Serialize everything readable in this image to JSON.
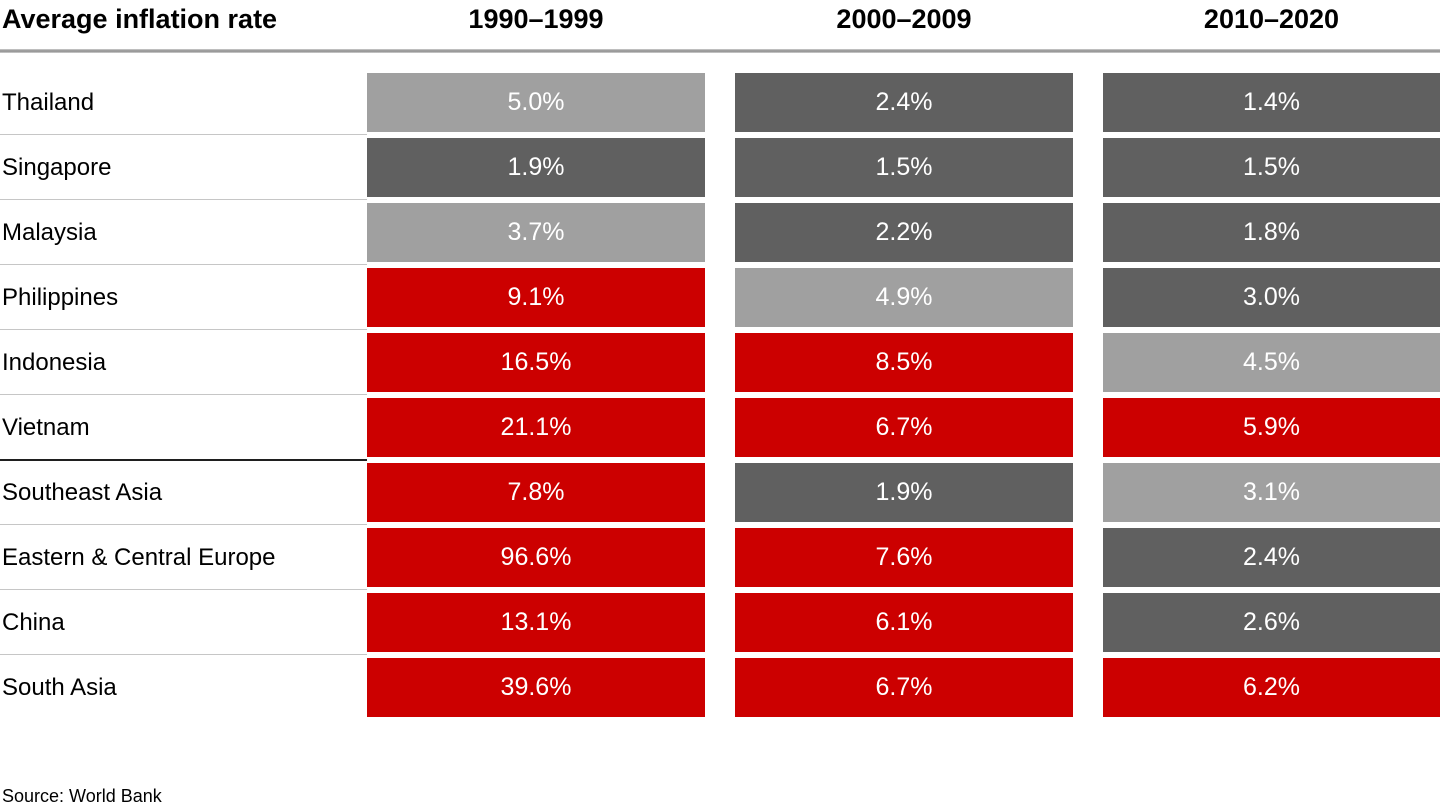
{
  "title": "Average inflation rate",
  "periods": [
    "1990–1999",
    "2000–2009",
    "2010–2020"
  ],
  "source": "Source: World Bank",
  "colors": {
    "red": "#cc0000",
    "dark_gray": "#606060",
    "light_gray": "#a0a0a0"
  },
  "rows": [
    {
      "label": "Thailand",
      "strong_divider_below": false,
      "cells": [
        {
          "text": "5.0%",
          "color": "light_gray"
        },
        {
          "text": "2.4%",
          "color": "dark_gray"
        },
        {
          "text": "1.4%",
          "color": "dark_gray"
        }
      ]
    },
    {
      "label": "Singapore",
      "strong_divider_below": false,
      "cells": [
        {
          "text": "1.9%",
          "color": "dark_gray"
        },
        {
          "text": "1.5%",
          "color": "dark_gray"
        },
        {
          "text": "1.5%",
          "color": "dark_gray"
        }
      ]
    },
    {
      "label": "Malaysia",
      "strong_divider_below": false,
      "cells": [
        {
          "text": "3.7%",
          "color": "light_gray"
        },
        {
          "text": "2.2%",
          "color": "dark_gray"
        },
        {
          "text": "1.8%",
          "color": "dark_gray"
        }
      ]
    },
    {
      "label": "Philippines",
      "strong_divider_below": false,
      "cells": [
        {
          "text": "9.1%",
          "color": "red"
        },
        {
          "text": "4.9%",
          "color": "light_gray"
        },
        {
          "text": "3.0%",
          "color": "dark_gray"
        }
      ]
    },
    {
      "label": "Indonesia",
      "strong_divider_below": false,
      "cells": [
        {
          "text": "16.5%",
          "color": "red"
        },
        {
          "text": "8.5%",
          "color": "red"
        },
        {
          "text": "4.5%",
          "color": "light_gray"
        }
      ]
    },
    {
      "label": "Vietnam",
      "strong_divider_below": true,
      "cells": [
        {
          "text": "21.1%",
          "color": "red"
        },
        {
          "text": "6.7%",
          "color": "red"
        },
        {
          "text": "5.9%",
          "color": "red"
        }
      ]
    },
    {
      "label": "Southeast Asia",
      "strong_divider_below": false,
      "cells": [
        {
          "text": "7.8%",
          "color": "red"
        },
        {
          "text": "1.9%",
          "color": "dark_gray"
        },
        {
          "text": "3.1%",
          "color": "light_gray"
        }
      ]
    },
    {
      "label": "Eastern & Central Europe",
      "strong_divider_below": false,
      "cells": [
        {
          "text": "96.6%",
          "color": "red"
        },
        {
          "text": "7.6%",
          "color": "red"
        },
        {
          "text": "2.4%",
          "color": "dark_gray"
        }
      ]
    },
    {
      "label": "China",
      "strong_divider_below": false,
      "cells": [
        {
          "text": "13.1%",
          "color": "red"
        },
        {
          "text": "6.1%",
          "color": "red"
        },
        {
          "text": "2.6%",
          "color": "dark_gray"
        }
      ]
    },
    {
      "label": "South Asia",
      "strong_divider_below": false,
      "cells": [
        {
          "text": "39.6%",
          "color": "red"
        },
        {
          "text": "6.7%",
          "color": "red"
        },
        {
          "text": "6.2%",
          "color": "red"
        }
      ]
    }
  ],
  "chart_data": {
    "type": "heatmap",
    "title": "Average inflation rate",
    "columns": [
      "1990–1999",
      "2000–2009",
      "2010–2020"
    ],
    "rows": [
      "Thailand",
      "Singapore",
      "Malaysia",
      "Philippines",
      "Indonesia",
      "Vietnam",
      "Southeast Asia",
      "Eastern & Central Europe",
      "China",
      "South Asia"
    ],
    "values": [
      [
        5.0,
        2.4,
        1.4
      ],
      [
        1.9,
        1.5,
        1.5
      ],
      [
        3.7,
        2.2,
        1.8
      ],
      [
        9.1,
        4.9,
        3.0
      ],
      [
        16.5,
        8.5,
        4.5
      ],
      [
        21.1,
        6.7,
        5.9
      ],
      [
        7.8,
        1.9,
        3.1
      ],
      [
        96.6,
        7.6,
        2.4
      ],
      [
        13.1,
        6.1,
        2.6
      ],
      [
        39.6,
        6.7,
        6.2
      ]
    ],
    "value_unit": "%",
    "cell_color_keys": [
      [
        "light_gray",
        "dark_gray",
        "dark_gray"
      ],
      [
        "dark_gray",
        "dark_gray",
        "dark_gray"
      ],
      [
        "light_gray",
        "dark_gray",
        "dark_gray"
      ],
      [
        "red",
        "light_gray",
        "dark_gray"
      ],
      [
        "red",
        "red",
        "light_gray"
      ],
      [
        "red",
        "red",
        "red"
      ],
      [
        "red",
        "dark_gray",
        "light_gray"
      ],
      [
        "red",
        "red",
        "dark_gray"
      ],
      [
        "red",
        "red",
        "dark_gray"
      ],
      [
        "red",
        "red",
        "red"
      ]
    ],
    "color_palette": {
      "red": "#cc0000",
      "dark_gray": "#606060",
      "light_gray": "#a0a0a0"
    },
    "layout_hints": {
      "divider_after_row": "Vietnam",
      "legend": "none",
      "grid": "row dividers in label column only"
    },
    "source": "Source: World Bank"
  }
}
